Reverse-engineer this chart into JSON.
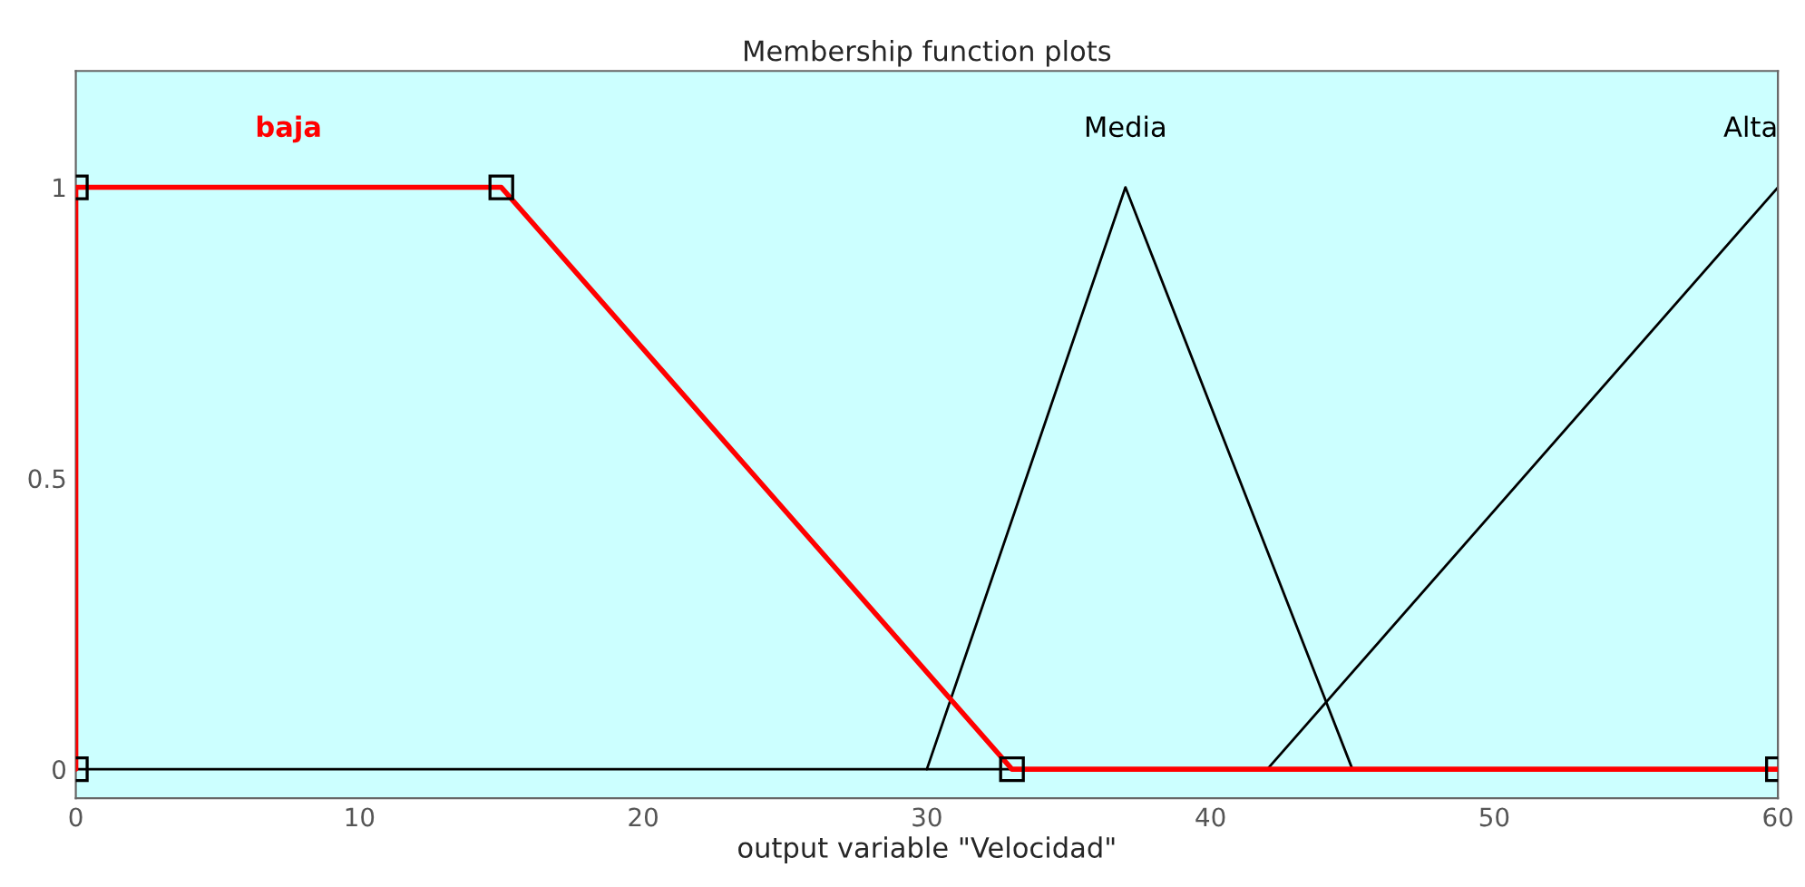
{
  "chart_data": {
    "type": "line",
    "title": "Membership function plots",
    "xlabel": "output variable \"Velocidad\"",
    "xlim": [
      0,
      60
    ],
    "ylim": [
      -0.05,
      1.2
    ],
    "xticks": [
      0,
      10,
      20,
      30,
      40,
      50,
      60
    ],
    "yticks": [
      0,
      0.5,
      1
    ],
    "grid": false,
    "legend": false,
    "line_style": "solid",
    "ref_lines": [
      {
        "axis": "y",
        "value": 0,
        "color": "#000000"
      }
    ],
    "series": [
      {
        "name": "baja",
        "color": "#ff0000",
        "x": [
          0,
          0,
          15,
          33,
          60
        ],
        "values": [
          0,
          1,
          1,
          0,
          0
        ],
        "marker": "square"
      },
      {
        "name": "Media",
        "color": "#000000",
        "x": [
          30,
          37,
          45
        ],
        "values": [
          0,
          1,
          0
        ],
        "marker": "none"
      },
      {
        "name": "Alta",
        "color": "#000000",
        "x": [
          42,
          60
        ],
        "values": [
          0,
          1
        ],
        "marker": "none"
      }
    ]
  }
}
